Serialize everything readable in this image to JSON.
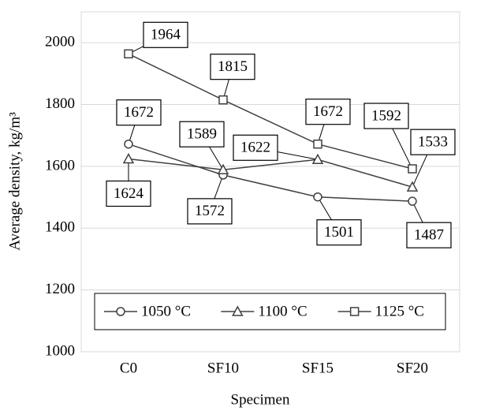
{
  "chart_data": {
    "type": "line",
    "x_label": "Specimen",
    "y_label": "Average density, kg/m³",
    "categories": [
      "C0",
      "SF10",
      "SF15",
      "SF20"
    ],
    "series": [
      {
        "name": "1050 °C",
        "color": "#404040",
        "marker": "circle",
        "values": [
          1672,
          1572,
          1501,
          1487
        ]
      },
      {
        "name": "1100 °C",
        "color": "#404040",
        "marker": "triangle",
        "values": [
          1624,
          1589,
          1622,
          1533
        ]
      },
      {
        "name": "1125 °C",
        "color": "#404040",
        "marker": "square",
        "values": [
          1964,
          1815,
          1672,
          1592
        ]
      }
    ],
    "ylim": [
      1000,
      2100
    ],
    "yticks": [
      1000,
      1200,
      1400,
      1600,
      1800,
      2000
    ],
    "grid": true,
    "legend": "lower center"
  }
}
